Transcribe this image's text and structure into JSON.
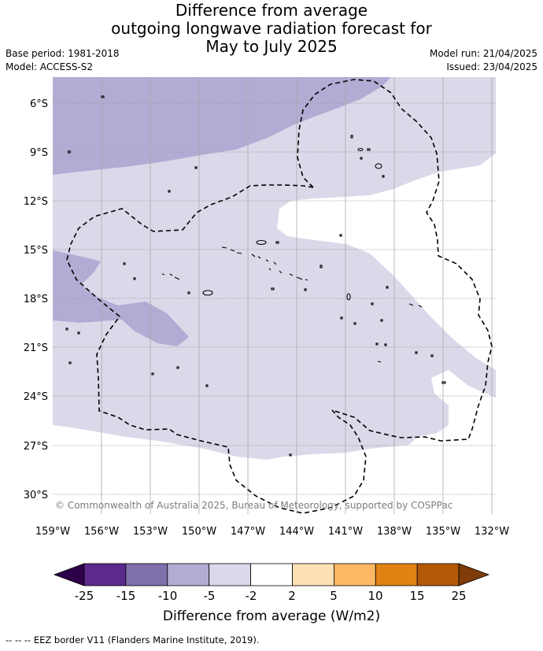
{
  "title": {
    "line1": "Difference from average",
    "line2": "outgoing longwave radiation forecast for",
    "line3": "May to July 2025"
  },
  "meta": {
    "base_period": "Base period: 1981-2018",
    "model": "Model: ACCESS-S2",
    "model_run": "Model run: 21/04/2025",
    "issued": "Issued: 23/04/2025"
  },
  "map": {
    "lat_labels": [
      "6°S",
      "9°S",
      "12°S",
      "15°S",
      "18°S",
      "21°S",
      "24°S",
      "27°S",
      "30°S"
    ],
    "lon_labels": [
      "159°W",
      "156°W",
      "153°W",
      "150°W",
      "147°W",
      "144°W",
      "141°W",
      "138°W",
      "135°W",
      "132°W"
    ],
    "copyright": "© Commonwealth of Australia 2025, Bureau of Meteorology, supported by COSPPac",
    "colors": {
      "band_minus_10_minus_5": "#b1acd3",
      "band_minus_5_minus_2": "#d9d9ea",
      "band_minus_2_2": "#ffffff",
      "gridline": "#9a9a9a",
      "eez_border": "#000000"
    }
  },
  "colorbar": {
    "ticks": [
      "-25",
      "-15",
      "-10",
      "-5",
      "-2",
      "2",
      "5",
      "10",
      "15",
      "25"
    ],
    "label": "Difference from average (W/m2)",
    "colors": [
      "#2d004b",
      "#5b2a8c",
      "#7f6fab",
      "#b1acd3",
      "#d9d9ea",
      "#ffffff",
      "#fde0b6",
      "#fdb863",
      "#e08214",
      "#b35806",
      "#7f3b08"
    ]
  },
  "footnote": "--  --  -- EEZ border V11 (Flanders Marine Institute, 2019)."
}
